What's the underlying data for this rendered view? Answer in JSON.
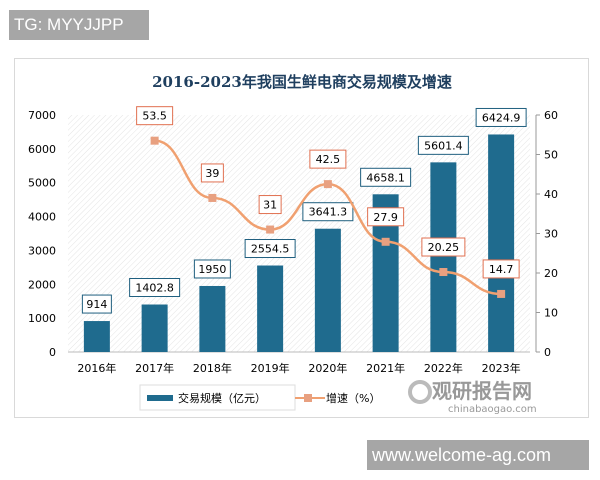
{
  "watermarks": {
    "top_left": "TG: MYYJJPP",
    "bottom_right": "www.welcome-ag.com",
    "logo_cn": "观研报告网",
    "logo_en": "chinabaogao.com"
  },
  "chart_data": {
    "type": "bar+line",
    "title": "2016-2023年我国生鲜电商交易规模及增速",
    "categories": [
      "2016年",
      "2017年",
      "2018年",
      "2019年",
      "2020年",
      "2021年",
      "2022年",
      "2023年"
    ],
    "series": [
      {
        "name": "交易规模（亿元）",
        "type": "bar",
        "axis": "left",
        "color": "#1f6b8e",
        "values": [
          914,
          1402.8,
          1950,
          2554.5,
          3641.3,
          4658.1,
          5601.4,
          6424.9
        ],
        "labels": [
          "914",
          "1402.8",
          "1950",
          "2554.5",
          "3641.3",
          "4658.1",
          "5601.4",
          "6424.9"
        ]
      },
      {
        "name": "增速（%）",
        "type": "line",
        "axis": "right",
        "color": "#f0a070",
        "values": [
          null,
          53.5,
          39,
          31,
          42.5,
          27.9,
          20.25,
          14.7
        ],
        "labels": [
          "",
          "53.5",
          "39",
          "31",
          "42.5",
          "27.9",
          "20.25",
          "14.7"
        ]
      }
    ],
    "y_left": {
      "range": [
        0,
        7000
      ],
      "ticks": [
        "0",
        "1000",
        "2000",
        "3000",
        "4000",
        "5000",
        "6000",
        "7000"
      ]
    },
    "y_right": {
      "range": [
        0,
        60
      ],
      "ticks": [
        "0",
        "10",
        "20",
        "30",
        "40",
        "50",
        "60"
      ]
    },
    "legend": "bottom"
  }
}
